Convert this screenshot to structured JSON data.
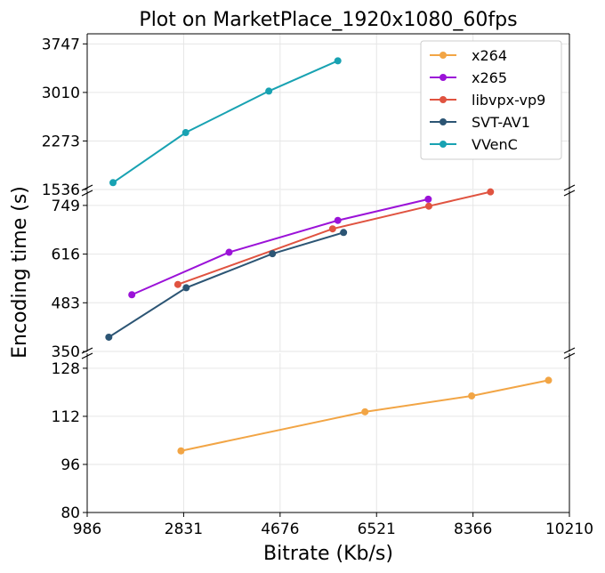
{
  "chart_data": {
    "type": "line",
    "title": "Plot on MarketPlace_1920x1080_60fps",
    "xlabel": "Bitrate (Kb/s)",
    "ylabel": "Encoding time (s)",
    "xlim": [
      986,
      10210
    ],
    "x_ticks": [
      "986",
      "2831",
      "4676",
      "6521",
      "8366",
      "10210"
    ],
    "broken_y_axis": true,
    "panels": [
      {
        "ylim": [
          1536,
          3900
        ],
        "y_ticks": [
          "1536",
          "2273",
          "3010",
          "3747"
        ]
      },
      {
        "ylim": [
          350,
          790
        ],
        "y_ticks": [
          "350",
          "483",
          "616",
          "749"
        ]
      },
      {
        "ylim": [
          80,
          133
        ],
        "y_ticks": [
          "80",
          "96",
          "112",
          "128"
        ]
      }
    ],
    "legend_position": "top-right",
    "grid": true,
    "series": [
      {
        "name": "x264",
        "color": "#f2a545",
        "panel": 2,
        "x": [
          2780,
          6300,
          8340,
          9810
        ],
        "y": [
          100.5,
          113.5,
          118.8,
          124
        ]
      },
      {
        "name": "x265",
        "color": "#9b12d8",
        "panel": 1,
        "x": [
          1840,
          3700,
          5780,
          7510
        ],
        "y": [
          505,
          621,
          708,
          766
        ]
      },
      {
        "name": "libvpx-vp9",
        "color": "#e05340",
        "panel": 1,
        "x": [
          2720,
          5680,
          7520,
          8700
        ],
        "y": [
          533,
          685,
          747,
          786
        ]
      },
      {
        "name": "SVT-AV1",
        "color": "#2c5574",
        "panel": 1,
        "x": [
          1400,
          2880,
          4530,
          5890
        ],
        "y": [
          389,
          524,
          617,
          675
        ]
      },
      {
        "name": "VVenC",
        "color": "#18a2b2",
        "panel": 0,
        "x": [
          1480,
          2870,
          4460,
          5780
        ],
        "y": [
          1640,
          2400,
          3030,
          3490
        ]
      }
    ]
  }
}
